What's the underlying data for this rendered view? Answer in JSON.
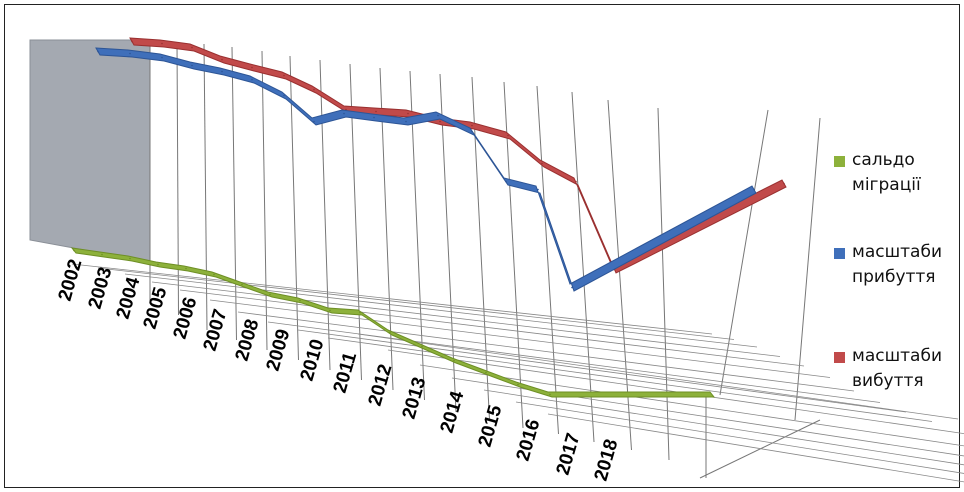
{
  "chart_data": {
    "type": "line",
    "style": "3d",
    "categories": [
      "2002",
      "2003",
      "2004",
      "2005",
      "2006",
      "2007",
      "2008",
      "2009",
      "2010",
      "2011",
      "2012",
      "2013",
      "2014",
      "2015",
      "2016",
      "2017",
      "2018"
    ],
    "series": [
      {
        "name": "сальдо міграції",
        "color": "#8db13b",
        "values": [
          4,
          3,
          2,
          1,
          0,
          -2,
          -3,
          -2,
          -3,
          -1,
          0,
          -1,
          -2,
          -2,
          -2,
          -2,
          -2
        ]
      },
      {
        "name": "масштаби прибуття",
        "color": "#3f6fba",
        "values": [
          98,
          99,
          95,
          95,
          89,
          77,
          82,
          80,
          85,
          78,
          67,
          70,
          75,
          35,
          60,
          82,
          null
        ]
      },
      {
        "name": "масштаби вибуття",
        "color": "#c14a4a",
        "values": [
          100,
          98,
          96,
          94,
          89,
          81,
          84,
          83,
          87,
          82,
          76,
          71,
          77,
          35,
          60,
          84,
          null
        ]
      }
    ],
    "legend_position": "right",
    "grid": true
  },
  "legend": [
    {
      "label": "сальдо міграції",
      "color": "#8db13b"
    },
    {
      "label": "масштаби прибуття",
      "color": "#3f6fba"
    },
    {
      "label": "масштаби вибуття",
      "color": "#c14a4a"
    }
  ]
}
